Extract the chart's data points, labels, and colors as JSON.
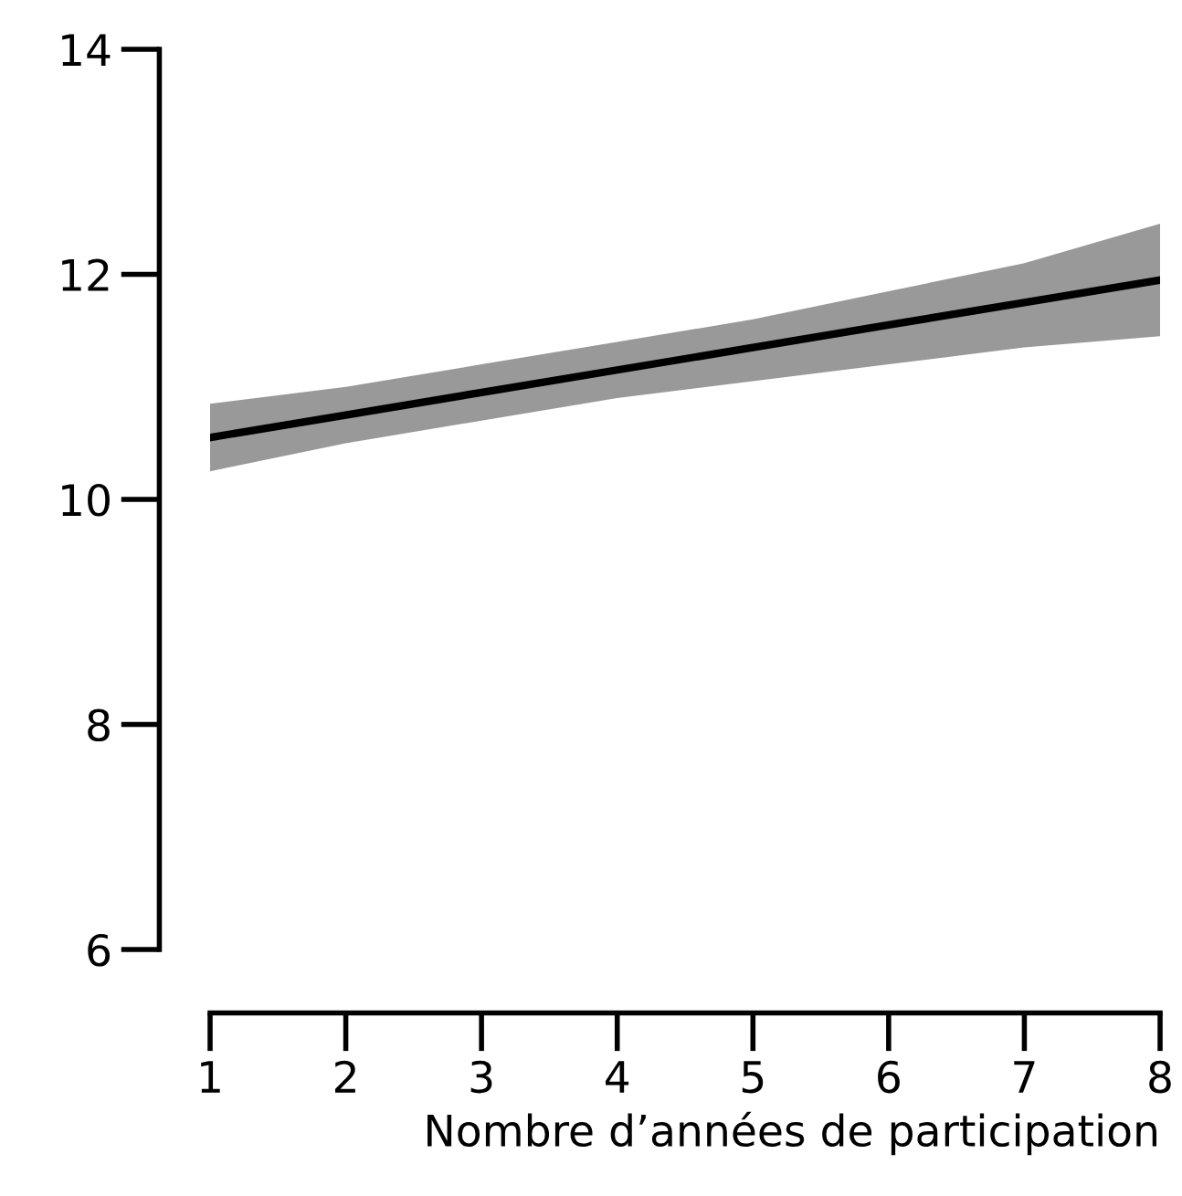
{
  "chart_data": {
    "type": "line",
    "xlabel": "Nombre d’années de participation",
    "x": [
      1,
      2,
      3,
      4,
      5,
      6,
      7,
      8
    ],
    "series": [
      {
        "color": "#000000",
        "values": [
          10.55,
          10.75,
          10.95,
          11.15,
          11.35,
          11.55,
          11.75,
          11.95
        ],
        "lower": [
          10.25,
          10.5,
          10.7,
          10.9,
          11.05,
          11.2,
          11.35,
          11.45
        ],
        "upper": [
          10.85,
          11.0,
          11.2,
          11.4,
          11.6,
          11.85,
          12.1,
          12.45
        ]
      }
    ],
    "xlim": [
      1,
      8
    ],
    "ylim": [
      6,
      14
    ],
    "xticks": [
      1,
      2,
      3,
      4,
      5,
      6,
      7,
      8
    ],
    "yticks": [
      6,
      8,
      10,
      12,
      14
    ],
    "grid": false,
    "legend": false,
    "marker": "none",
    "line_style": "solid"
  }
}
